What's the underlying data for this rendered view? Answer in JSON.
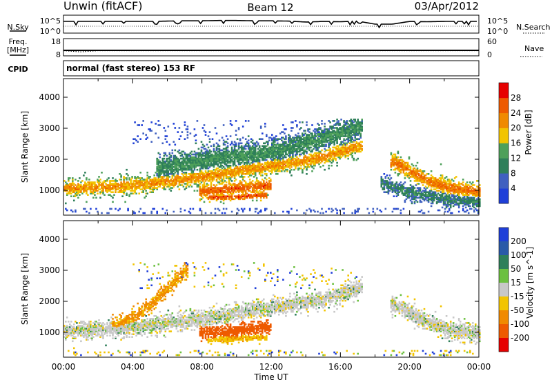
{
  "header": {
    "station": "Unwin (fitACF)",
    "beam": "Beam 12",
    "date": "03/Apr/2012"
  },
  "colors": {
    "velocity_gray": "#c8c8c8",
    "power_low": "#1f3fd8",
    "power_high": "#e60000"
  },
  "chart_data": [
    {
      "type": "line",
      "name": "noise-panel",
      "left_label": "N.Sky",
      "right_label": "N.Search",
      "left_ticks": [
        "10^5",
        "10^0"
      ],
      "right_ticks": [
        "10^5",
        "10^0"
      ],
      "x": [
        0,
        1,
        2,
        3,
        4,
        5,
        6,
        7,
        8,
        9,
        10,
        11,
        12,
        13,
        14,
        15,
        16,
        17,
        18,
        19,
        20,
        21,
        22,
        23,
        24
      ],
      "series": [
        {
          "name": "N.Sky",
          "values": [
            3.4,
            3.4,
            3.4,
            3.4,
            3.4,
            3.4,
            3.5,
            3.6,
            3.6,
            3.7,
            3.7,
            3.6,
            3.6,
            3.5,
            3.2,
            3.4,
            3.3,
            3.5,
            2.5,
            2.5,
            3.4,
            3.3,
            3.4,
            3.4,
            3.4
          ]
        }
      ],
      "xlim": [
        0,
        24
      ],
      "ylim": [
        0,
        5
      ]
    },
    {
      "type": "line",
      "name": "frequency-panel",
      "left_label_line1": "Freq.",
      "left_label_line2": "[MHz]",
      "right_label": "Nave",
      "left_ticks": [
        "18",
        "8"
      ],
      "right_ticks": [
        "60",
        "0"
      ],
      "x": [
        0,
        1,
        2,
        3,
        4,
        5,
        6,
        7,
        8,
        9,
        10,
        11,
        12,
        13,
        14,
        15,
        16,
        17,
        18,
        19,
        20,
        21,
        22,
        23,
        24
      ],
      "series": [
        {
          "name": "Freq.",
          "values": [
            11.2,
            11.2,
            11.2,
            11.2,
            11.2,
            11.2,
            11.2,
            11.2,
            11.2,
            11.2,
            11.2,
            11.2,
            11.2,
            11.2,
            11.2,
            11.2,
            11.2,
            11.2,
            11.2,
            11.2,
            11.2,
            11.2,
            11.2,
            11.2,
            11.2
          ]
        },
        {
          "name": "Nave",
          "values": [
            18,
            14,
            18,
            18,
            18,
            18,
            18,
            18,
            18,
            18,
            18,
            18,
            18,
            18,
            18,
            18,
            18,
            18,
            18,
            18,
            18,
            18,
            18,
            18,
            18
          ]
        }
      ],
      "xlim": [
        0,
        24
      ]
    },
    {
      "type": "table",
      "name": "cpid-panel",
      "label": "CPID",
      "value": "normal (fast stereo) 153 RF"
    },
    {
      "type": "heatmap",
      "name": "power-panel",
      "ylabel": "Slant Range [km]",
      "ylim": [
        200,
        4600
      ],
      "yticks": [
        1000,
        2000,
        3000,
        4000
      ],
      "xlim": [
        0,
        24
      ],
      "colorbar_label": "Power [dB]",
      "colorbar_ticks": [
        "4",
        "8",
        "12",
        "16",
        "20",
        "24",
        "28"
      ],
      "colorbar_colors": [
        "#1f3fd8",
        "#4060c0",
        "#2f7f5a",
        "#4ea05a",
        "#f2c400",
        "#f08a00",
        "#ee5a00",
        "#e60000"
      ],
      "bands": [
        {
          "x": [
            0,
            3,
            5,
            7,
            9,
            11,
            13,
            15,
            17
          ],
          "center": [
            1050,
            1100,
            1200,
            1350,
            1500,
            1700,
            1850,
            2050,
            2400
          ],
          "width": 320,
          "peak": 22
        },
        {
          "x": [
            5.5,
            8.5,
            11.5,
            14,
            17
          ],
          "center": [
            1700,
            2000,
            2150,
            2500,
            3000
          ],
          "width": 500,
          "peak": 12
        },
        {
          "x": [
            8,
            9,
            10,
            11,
            11.8
          ],
          "center": [
            950,
            1000,
            1050,
            1100,
            1150
          ],
          "width": 280,
          "peak": 26
        },
        {
          "x": [
            8.5,
            10,
            11.5
          ],
          "center": [
            750,
            780,
            820
          ],
          "width": 140,
          "peak": 27
        },
        {
          "x": [
            19,
            20,
            21,
            22,
            23,
            24
          ],
          "center": [
            1900,
            1600,
            1300,
            1100,
            1000,
            950
          ],
          "width": 330,
          "peak": 24
        },
        {
          "x": [
            18.5,
            20,
            22,
            24
          ],
          "center": [
            1200,
            900,
            700,
            600
          ],
          "width": 300,
          "peak": 10
        }
      ]
    },
    {
      "type": "heatmap",
      "name": "velocity-panel",
      "ylabel": "Slant Range [km]",
      "ylim": [
        200,
        4600
      ],
      "yticks": [
        1000,
        2000,
        3000,
        4000
      ],
      "xlim": [
        0,
        24
      ],
      "xticks": [
        "00:00",
        "04:00",
        "08:00",
        "12:00",
        "16:00",
        "20:00",
        "00:00"
      ],
      "xlabel": "Time UT",
      "colorbar_label": "Velocity [m s^-1]",
      "colorbar_ticks": [
        "200",
        "100",
        "50",
        "15",
        "-15",
        "-50",
        "-100",
        "-200"
      ],
      "colorbar_colors": [
        "#1f3fd8",
        "#2a5aa8",
        "#2f7f5a",
        "#6cc040",
        "#c8c8c8",
        "#f2c400",
        "#f08a00",
        "#ee5a00",
        "#e60000"
      ],
      "bands": [
        {
          "x": [
            0,
            3,
            5,
            7,
            9,
            11,
            13,
            15,
            17
          ],
          "center": [
            1050,
            1100,
            1200,
            1350,
            1500,
            1700,
            1850,
            2050,
            2400
          ],
          "width": 320,
          "velocity": 0
        },
        {
          "x": [
            3,
            4,
            5,
            6,
            7
          ],
          "center": [
            1200,
            1450,
            1900,
            2400,
            3000
          ],
          "width": 260,
          "velocity": -60
        },
        {
          "x": [
            8,
            9,
            10,
            11,
            11.8
          ],
          "center": [
            950,
            1000,
            1050,
            1100,
            1150
          ],
          "width": 280,
          "velocity": -150
        },
        {
          "x": [
            8.5,
            10,
            11.5
          ],
          "center": [
            750,
            780,
            820
          ],
          "width": 140,
          "velocity": -40
        },
        {
          "x": [
            19,
            20,
            21,
            22,
            23,
            24
          ],
          "center": [
            1900,
            1600,
            1300,
            1100,
            1000,
            950
          ],
          "width": 330,
          "velocity": 0
        }
      ]
    }
  ]
}
